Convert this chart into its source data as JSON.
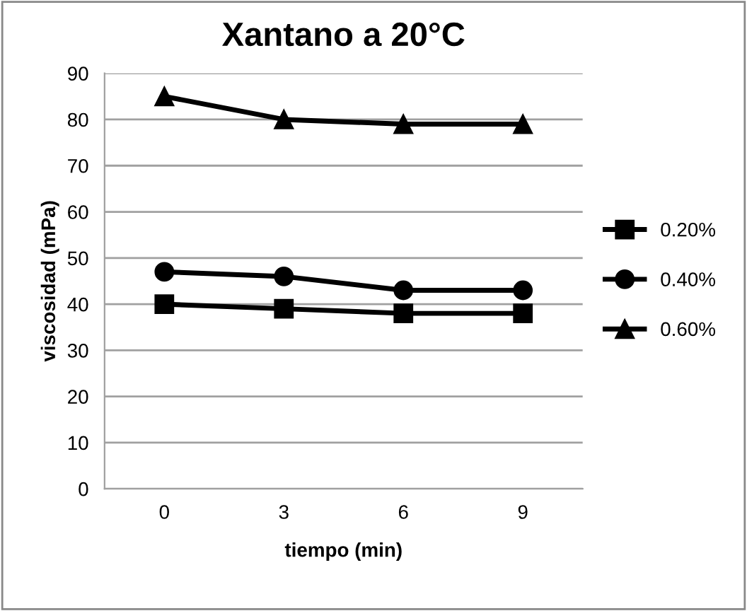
{
  "chart_data": {
    "type": "line",
    "title": "Xantano a 20°C",
    "xlabel": "tiempo (min)",
    "ylabel": "viscosidad (mPa)",
    "categories": [
      "0",
      "3",
      "6",
      "9"
    ],
    "series": [
      {
        "name": "0.20%",
        "color": "#000000",
        "marker": "square",
        "values": [
          40,
          39,
          38,
          38
        ]
      },
      {
        "name": "0.40%",
        "color": "#000000",
        "marker": "circle",
        "values": [
          47,
          46,
          43,
          43
        ]
      },
      {
        "name": "0.60%",
        "color": "#000000",
        "marker": "triangle",
        "values": [
          85,
          80,
          79,
          79
        ]
      }
    ],
    "ylim": [
      0,
      90
    ],
    "yticks": [
      0,
      10,
      20,
      30,
      40,
      50,
      60,
      70,
      80,
      90
    ],
    "grid": "y",
    "legend": "right",
    "line_style": "solid"
  }
}
